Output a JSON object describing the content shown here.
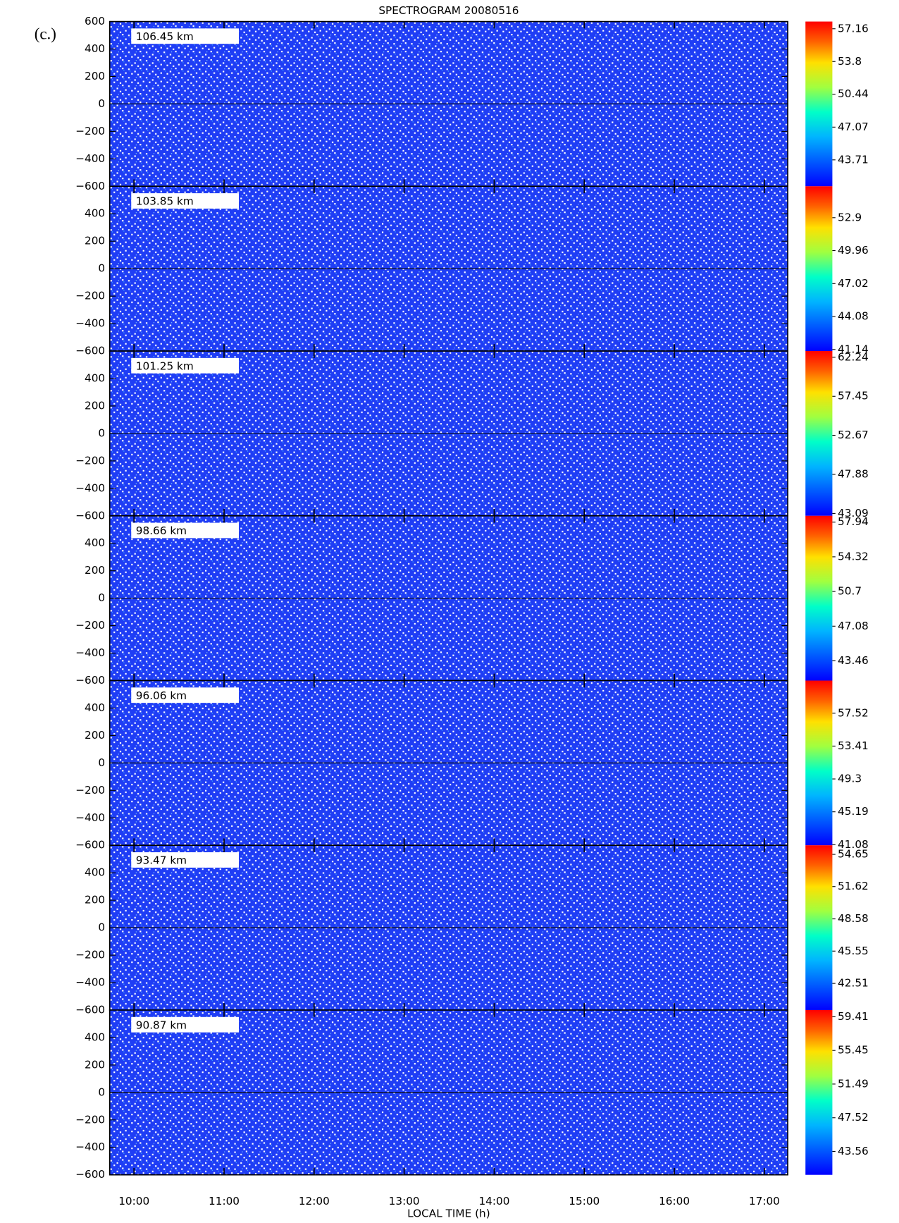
{
  "chart_data": {
    "type": "spectrogram",
    "title": "SPECTROGRAM 20080516",
    "panel_label": "(c.)",
    "xlabel": "LOCAL TIME (h)",
    "xlim": [
      9.73,
      17.26
    ],
    "xticks": [
      {
        "value": 10,
        "label": "10:00"
      },
      {
        "value": 11,
        "label": "11:00"
      },
      {
        "value": 12,
        "label": "12:00"
      },
      {
        "value": 13,
        "label": "13:00"
      },
      {
        "value": 14,
        "label": "14:00"
      },
      {
        "value": 15,
        "label": "15:00"
      },
      {
        "value": 16,
        "label": "16:00"
      },
      {
        "value": 17,
        "label": "17:00"
      }
    ],
    "panels": [
      {
        "altitude": "106.45 km",
        "ylim": [
          -600,
          600
        ],
        "yticks": [
          600,
          400,
          200,
          0,
          {
            "value": -200,
            "label": "−200"
          },
          {
            "value": -400,
            "label": "−400"
          },
          {
            "value": -600,
            "label": "−600"
          }
        ],
        "clim": [
          41.0,
          57.9
        ],
        "cticks": [
          57.16,
          53.8,
          50.44,
          47.07,
          43.71
        ]
      },
      {
        "altitude": "103.85 km",
        "ylim": [
          -600,
          600
        ],
        "yticks": [
          400,
          200,
          0,
          {
            "value": -200,
            "label": "−200"
          },
          {
            "value": -400,
            "label": "−400"
          },
          {
            "value": -600,
            "label": "−600"
          }
        ],
        "clim": [
          41.0,
          55.7
        ],
        "cticks": [
          52.9,
          49.96,
          47.02,
          44.08,
          41.14
        ]
      },
      {
        "altitude": "101.25 km",
        "ylim": [
          -600,
          600
        ],
        "yticks": [
          400,
          200,
          0,
          {
            "value": -200,
            "label": "−200"
          },
          {
            "value": -400,
            "label": "−400"
          },
          {
            "value": -600,
            "label": "−600"
          }
        ],
        "clim": [
          42.8,
          63.0
        ],
        "cticks": [
          62.24,
          57.45,
          52.67,
          47.88,
          43.09
        ]
      },
      {
        "altitude": "98.66 km",
        "ylim": [
          -600,
          600
        ],
        "yticks": [
          400,
          200,
          0,
          {
            "value": -200,
            "label": "−200"
          },
          {
            "value": -400,
            "label": "−400"
          },
          {
            "value": -600,
            "label": "−600"
          }
        ],
        "clim": [
          41.4,
          58.6
        ],
        "cticks": [
          57.94,
          54.32,
          50.7,
          47.08,
          43.46
        ]
      },
      {
        "altitude": "96.06 km",
        "ylim": [
          -600,
          600
        ],
        "yticks": [
          400,
          200,
          0,
          {
            "value": -200,
            "label": "−200"
          },
          {
            "value": -400,
            "label": "−400"
          },
          {
            "value": -600,
            "label": "−600"
          }
        ],
        "clim": [
          41.0,
          61.6
        ],
        "cticks": [
          57.52,
          53.41,
          49.3,
          45.19,
          41.08
        ]
      },
      {
        "altitude": "93.47 km",
        "ylim": [
          -600,
          600
        ],
        "yticks": [
          400,
          200,
          0,
          {
            "value": -200,
            "label": "−200"
          },
          {
            "value": -400,
            "label": "−400"
          },
          {
            "value": -600,
            "label": "−600"
          }
        ],
        "clim": [
          40.0,
          55.5
        ],
        "cticks": [
          54.65,
          51.62,
          48.58,
          45.55,
          42.51
        ]
      },
      {
        "altitude": "90.87 km",
        "ylim": [
          -600,
          600
        ],
        "yticks": [
          400,
          200,
          0,
          {
            "value": -200,
            "label": "−200"
          },
          {
            "value": -400,
            "label": "−400"
          },
          {
            "value": -600,
            "label": "−600"
          }
        ],
        "clim": [
          40.8,
          60.2
        ],
        "cticks": [
          59.41,
          55.45,
          51.49,
          47.52,
          43.56
        ]
      }
    ]
  }
}
